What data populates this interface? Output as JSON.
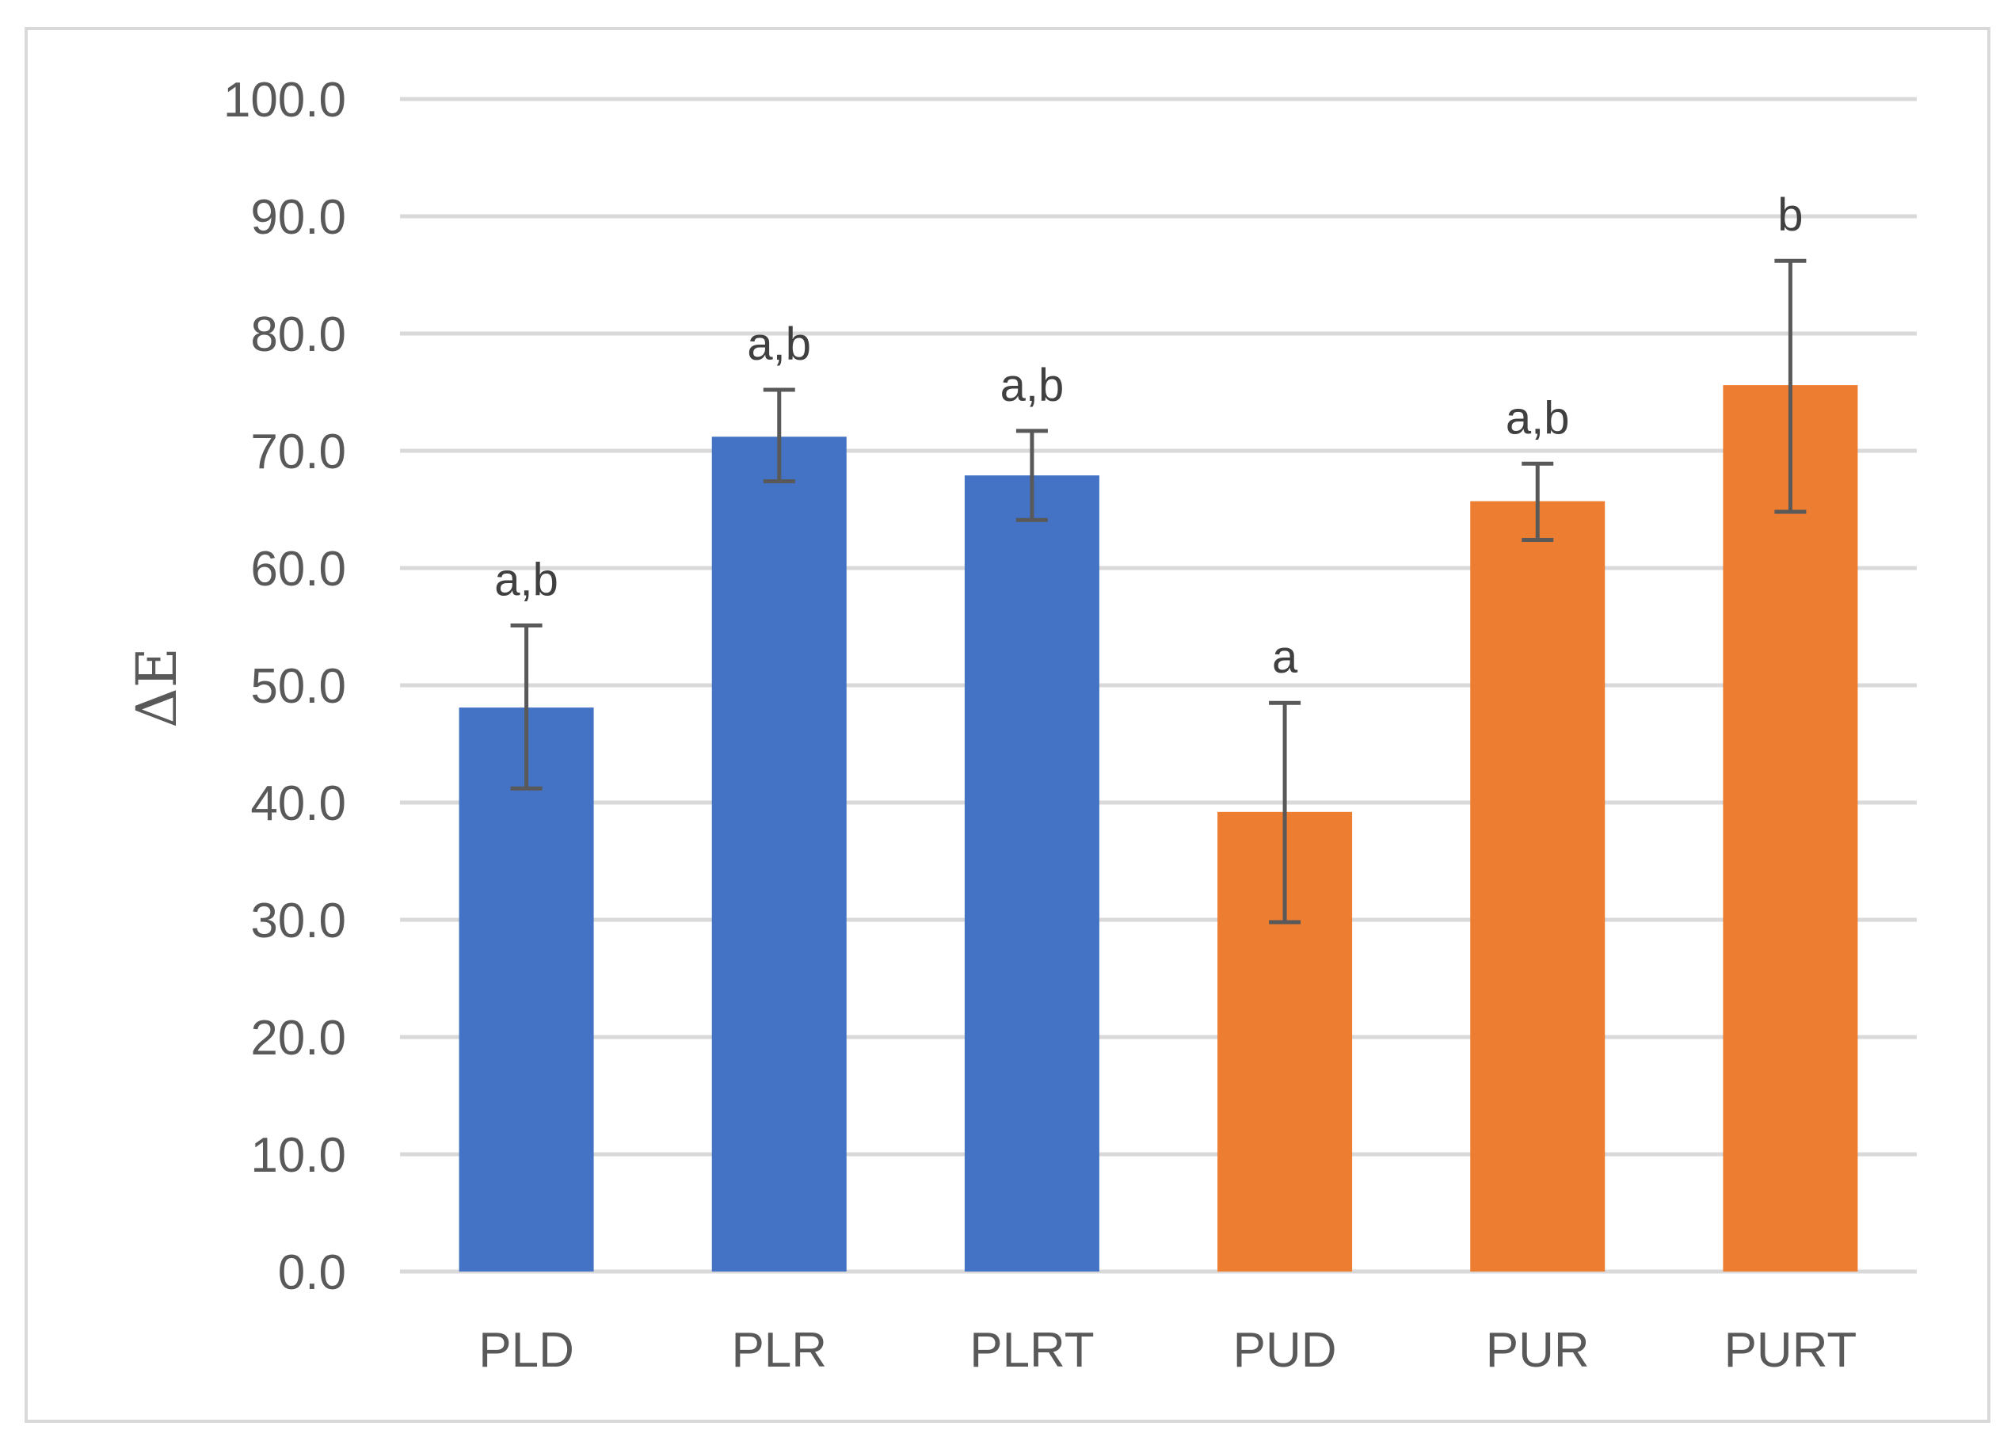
{
  "chart_data": {
    "type": "bar",
    "title": "",
    "xlabel": "",
    "ylabel": "ΔE",
    "ylim": [
      0,
      100
    ],
    "ytick_step": 10,
    "ytick_labels": [
      "0.0",
      "10.0",
      "20.0",
      "30.0",
      "40.0",
      "50.0",
      "60.0",
      "70.0",
      "80.0",
      "90.0",
      "100.0"
    ],
    "grid": true,
    "categories": [
      "PLD",
      "PLR",
      "PLRT",
      "PUD",
      "PUR",
      "PURT"
    ],
    "values": [
      48.1,
      71.2,
      67.9,
      39.2,
      65.7,
      75.6
    ],
    "error_low": [
      41.2,
      67.4,
      64.1,
      29.8,
      62.4,
      64.8
    ],
    "error_high": [
      55.1,
      75.2,
      71.7,
      48.5,
      68.9,
      86.2
    ],
    "significance": [
      "a,b",
      "a,b",
      "a,b",
      "a",
      "a,b",
      "b"
    ],
    "colors": [
      "#4472c4",
      "#4472c4",
      "#4472c4",
      "#ed7d31",
      "#ed7d31",
      "#ed7d31"
    ],
    "grid_color": "#d9d9d9",
    "error_bar_color": "#595959"
  }
}
